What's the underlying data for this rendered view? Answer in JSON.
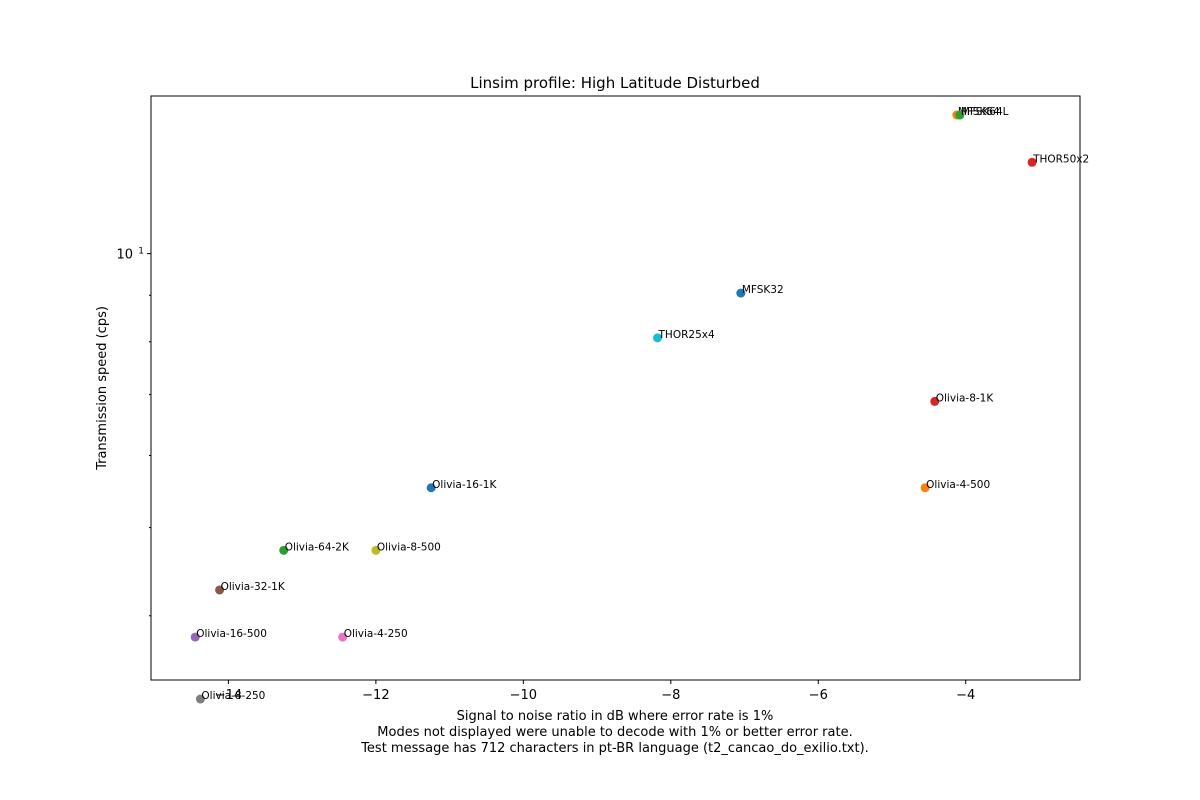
{
  "chart_data": {
    "type": "scatter",
    "title": "Linsim profile: High Latitude Disturbed",
    "xlabel_lines": [
      "Signal to noise ratio in dB where error rate is 1%",
      "Modes not displayed were unable to decode with 1% or better error rate.",
      "Test message has 712 characters in pt-BR language (t2_cancao_do_exilio.txt)."
    ],
    "ylabel": "Transmission speed (cps)",
    "x_ticks": [
      {
        "value": -14,
        "label": "−14"
      },
      {
        "value": -12,
        "label": "−12"
      },
      {
        "value": -10,
        "label": "−10"
      },
      {
        "value": -8,
        "label": "−8"
      },
      {
        "value": -6,
        "label": "−6"
      },
      {
        "value": -4,
        "label": "−4"
      }
    ],
    "y_ticks": [
      {
        "value": 10,
        "label_base": "10",
        "label_exp": "1"
      }
    ],
    "xlim": [
      -15.05,
      -2.45
    ],
    "ylim": [
      3.4,
      14.9
    ],
    "y_scale": "log",
    "grid": false,
    "points": [
      {
        "label": "MFSK64",
        "x": -4.12,
        "y": 14.2,
        "color": "#ff7f0e"
      },
      {
        "label": "MFSK64L",
        "x": -4.08,
        "y": 14.2,
        "color": "#2ca02c"
      },
      {
        "label": "THOR50x2",
        "x": -3.1,
        "y": 12.6,
        "color": "#d62728"
      },
      {
        "label": "MFSK32",
        "x": -7.05,
        "y": 9.05,
        "color": "#1f77b4"
      },
      {
        "label": "THOR25x4",
        "x": -8.18,
        "y": 8.08,
        "color": "#17becf"
      },
      {
        "label": "Olivia-8-1K",
        "x": -4.42,
        "y": 6.88,
        "color": "#d62728"
      },
      {
        "label": "Olivia-16-1K",
        "x": -11.25,
        "y": 5.53,
        "color": "#1f77b4"
      },
      {
        "label": "Olivia-4-500",
        "x": -4.55,
        "y": 5.53,
        "color": "#ff7f0e"
      },
      {
        "label": "Olivia-64-2K",
        "x": -13.25,
        "y": 4.72,
        "color": "#2ca02c"
      },
      {
        "label": "Olivia-8-500",
        "x": -12.0,
        "y": 4.72,
        "color": "#bcbd22"
      },
      {
        "label": "Olivia-32-1K",
        "x": -14.12,
        "y": 4.27,
        "color": "#8c564b"
      },
      {
        "label": "Olivia-16-500",
        "x": -14.45,
        "y": 3.79,
        "color": "#9467bd"
      },
      {
        "label": "Olivia-4-250",
        "x": -12.45,
        "y": 3.79,
        "color": "#e377c2"
      },
      {
        "label": "Olivia-8-250",
        "x": -14.38,
        "y": 3.24,
        "color": "#7f7f7f"
      }
    ]
  }
}
